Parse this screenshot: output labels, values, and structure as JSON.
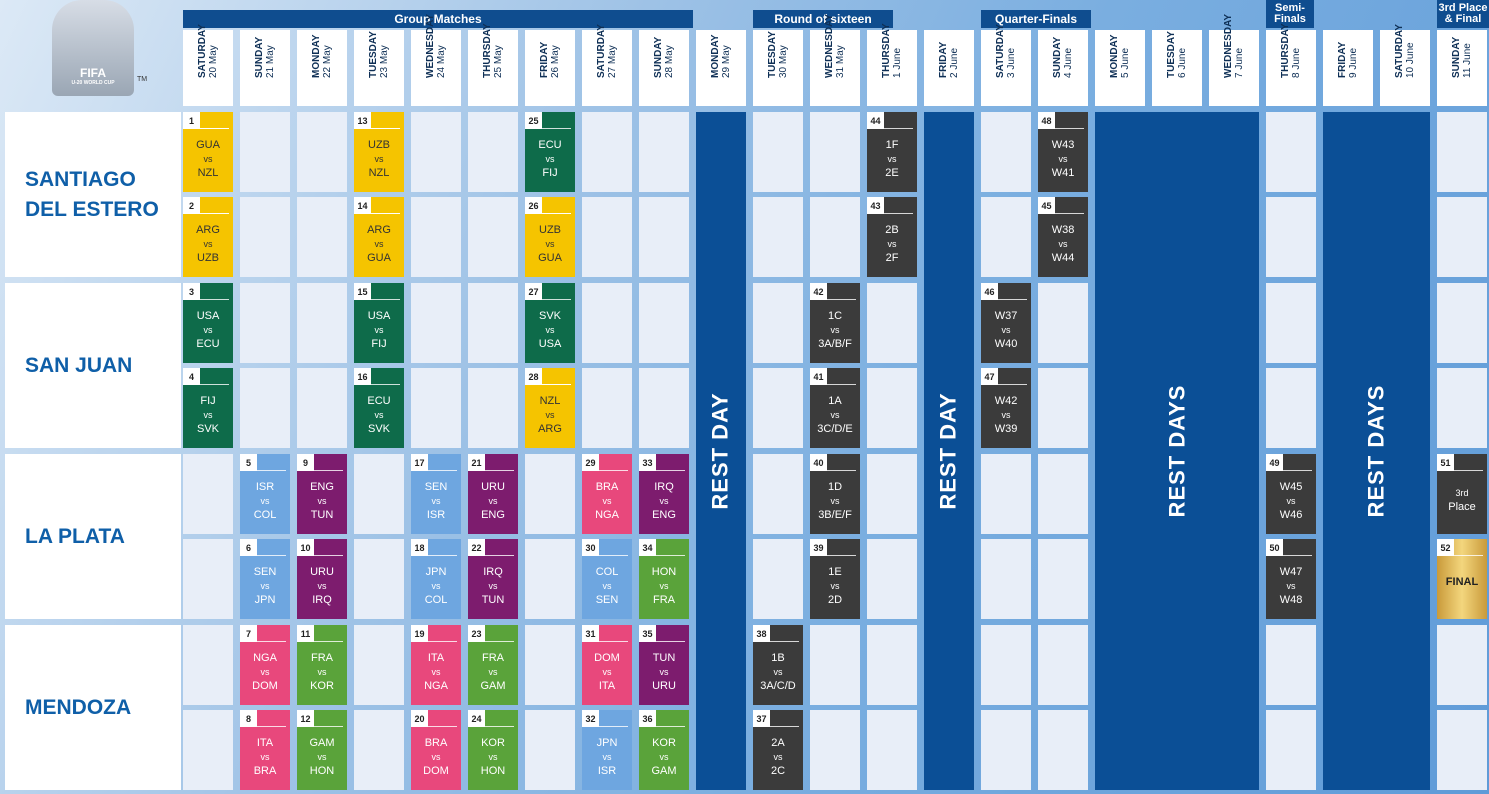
{
  "logo": {
    "brand": "FIFA",
    "sub": "U-20 WORLD CUP",
    "tm": "TM"
  },
  "phases": [
    {
      "label": "Group Matches"
    },
    {
      "label": "Round of sixteen"
    },
    {
      "label": "Quarter-Finals"
    },
    {
      "label": "Semi-\nFinals"
    },
    {
      "label": "3rd Place\n& Final"
    }
  ],
  "days": [
    {
      "name": "SATURDAY",
      "date": "20 May"
    },
    {
      "name": "SUNDAY",
      "date": "21 May"
    },
    {
      "name": "MONDAY",
      "date": "22 May"
    },
    {
      "name": "TUESDAY",
      "date": "23 May"
    },
    {
      "name": "WEDNESDAY",
      "date": "24 May"
    },
    {
      "name": "THURSDAY",
      "date": "25 May"
    },
    {
      "name": "FRIDAY",
      "date": "26 May"
    },
    {
      "name": "SATURDAY",
      "date": "27 May"
    },
    {
      "name": "SUNDAY",
      "date": "28 May"
    },
    {
      "name": "MONDAY",
      "date": "29 May"
    },
    {
      "name": "TUESDAY",
      "date": "30 May"
    },
    {
      "name": "WEDNESDAY",
      "date": "31 May"
    },
    {
      "name": "THURSDAY",
      "date": "1 June"
    },
    {
      "name": "FRIDAY",
      "date": "2 June"
    },
    {
      "name": "SATURDAY",
      "date": "3 June"
    },
    {
      "name": "SUNDAY",
      "date": "4 June"
    },
    {
      "name": "MONDAY",
      "date": "5 June"
    },
    {
      "name": "TUESDAY",
      "date": "6 June"
    },
    {
      "name": "WEDNESDAY",
      "date": "7 June"
    },
    {
      "name": "THURSDAY",
      "date": "8 June"
    },
    {
      "name": "FRIDAY",
      "date": "9 June"
    },
    {
      "name": "SATURDAY",
      "date": "10 June"
    },
    {
      "name": "SUNDAY",
      "date": "11 June"
    }
  ],
  "venues": [
    "SANTIAGO DEL ESTERO",
    "SAN JUAN",
    "LA PLATA",
    "MENDOZA"
  ],
  "rest_labels": {
    "single": "REST DAY",
    "multi": "REST DAYS"
  },
  "vs": "vs",
  "colors": {
    "yellow": "#f5c400",
    "green": "#0e6b4a",
    "lightblue": "#6ea6e0",
    "purple": "#7d1c6e",
    "pink": "#e8487c",
    "lime": "#5aa33a",
    "dark": "#3b3b3b",
    "gold": "#d9b25a",
    "navy": "#0f4d8f"
  },
  "matches": [
    {
      "n": "1",
      "a": "GUA",
      "b": "NZL",
      "color": "yellow",
      "row": 0,
      "col": 0
    },
    {
      "n": "13",
      "a": "UZB",
      "b": "NZL",
      "color": "yellow",
      "row": 0,
      "col": 3
    },
    {
      "n": "25",
      "a": "ECU",
      "b": "FIJ",
      "color": "green",
      "row": 0,
      "col": 6
    },
    {
      "n": "44",
      "a": "1F",
      "b": "2E",
      "color": "dark",
      "row": 0,
      "col": 12
    },
    {
      "n": "48",
      "a": "W43",
      "b": "W41",
      "color": "dark",
      "row": 0,
      "col": 15
    },
    {
      "n": "2",
      "a": "ARG",
      "b": "UZB",
      "color": "yellow",
      "row": 1,
      "col": 0
    },
    {
      "n": "14",
      "a": "ARG",
      "b": "GUA",
      "color": "yellow",
      "row": 1,
      "col": 3
    },
    {
      "n": "26",
      "a": "UZB",
      "b": "GUA",
      "color": "yellow",
      "row": 1,
      "col": 6
    },
    {
      "n": "43",
      "a": "2B",
      "b": "2F",
      "color": "dark",
      "row": 1,
      "col": 12
    },
    {
      "n": "45",
      "a": "W38",
      "b": "W44",
      "color": "dark",
      "row": 1,
      "col": 15
    },
    {
      "n": "3",
      "a": "USA",
      "b": "ECU",
      "color": "green",
      "row": 2,
      "col": 0
    },
    {
      "n": "15",
      "a": "USA",
      "b": "FIJ",
      "color": "green",
      "row": 2,
      "col": 3
    },
    {
      "n": "27",
      "a": "SVK",
      "b": "USA",
      "color": "green",
      "row": 2,
      "col": 6
    },
    {
      "n": "42",
      "a": "1C",
      "b": "3A/B/F",
      "color": "dark",
      "row": 2,
      "col": 11
    },
    {
      "n": "46",
      "a": "W37",
      "b": "W40",
      "color": "dark",
      "row": 2,
      "col": 14
    },
    {
      "n": "4",
      "a": "FIJ",
      "b": "SVK",
      "color": "green",
      "row": 3,
      "col": 0
    },
    {
      "n": "16",
      "a": "ECU",
      "b": "SVK",
      "color": "green",
      "row": 3,
      "col": 3
    },
    {
      "n": "28",
      "a": "NZL",
      "b": "ARG",
      "color": "yellow",
      "row": 3,
      "col": 6
    },
    {
      "n": "41",
      "a": "1A",
      "b": "3C/D/E",
      "color": "dark",
      "row": 3,
      "col": 11
    },
    {
      "n": "47",
      "a": "W42",
      "b": "W39",
      "color": "dark",
      "row": 3,
      "col": 14
    },
    {
      "n": "5",
      "a": "ISR",
      "b": "COL",
      "color": "lightblue",
      "row": 4,
      "col": 1
    },
    {
      "n": "9",
      "a": "ENG",
      "b": "TUN",
      "color": "purple",
      "row": 4,
      "col": 2
    },
    {
      "n": "17",
      "a": "SEN",
      "b": "ISR",
      "color": "lightblue",
      "row": 4,
      "col": 4
    },
    {
      "n": "21",
      "a": "URU",
      "b": "ENG",
      "color": "purple",
      "row": 4,
      "col": 5
    },
    {
      "n": "29",
      "a": "BRA",
      "b": "NGA",
      "color": "pink",
      "row": 4,
      "col": 7
    },
    {
      "n": "33",
      "a": "IRQ",
      "b": "ENG",
      "color": "purple",
      "row": 4,
      "col": 8
    },
    {
      "n": "40",
      "a": "1D",
      "b": "3B/E/F",
      "color": "dark",
      "row": 4,
      "col": 11
    },
    {
      "n": "49",
      "a": "W45",
      "b": "W46",
      "color": "dark",
      "row": 4,
      "col": 19
    },
    {
      "n": "51",
      "a": "3rd",
      "b": "Place",
      "color": "dark",
      "row": 4,
      "col": 22,
      "special": "third"
    },
    {
      "n": "6",
      "a": "SEN",
      "b": "JPN",
      "color": "lightblue",
      "row": 5,
      "col": 1
    },
    {
      "n": "10",
      "a": "URU",
      "b": "IRQ",
      "color": "purple",
      "row": 5,
      "col": 2
    },
    {
      "n": "18",
      "a": "JPN",
      "b": "COL",
      "color": "lightblue",
      "row": 5,
      "col": 4
    },
    {
      "n": "22",
      "a": "IRQ",
      "b": "TUN",
      "color": "purple",
      "row": 5,
      "col": 5
    },
    {
      "n": "30",
      "a": "COL",
      "b": "SEN",
      "color": "lightblue",
      "row": 5,
      "col": 7
    },
    {
      "n": "34",
      "a": "HON",
      "b": "FRA",
      "color": "lime",
      "row": 5,
      "col": 8
    },
    {
      "n": "39",
      "a": "1E",
      "b": "2D",
      "color": "dark",
      "row": 5,
      "col": 11
    },
    {
      "n": "50",
      "a": "W47",
      "b": "W48",
      "color": "dark",
      "row": 5,
      "col": 19
    },
    {
      "n": "52",
      "a": "FINAL",
      "b": "",
      "color": "gold",
      "row": 5,
      "col": 22,
      "special": "final"
    },
    {
      "n": "7",
      "a": "NGA",
      "b": "DOM",
      "color": "pink",
      "row": 6,
      "col": 1
    },
    {
      "n": "11",
      "a": "FRA",
      "b": "KOR",
      "color": "lime",
      "row": 6,
      "col": 2
    },
    {
      "n": "19",
      "a": "ITA",
      "b": "NGA",
      "color": "pink",
      "row": 6,
      "col": 4
    },
    {
      "n": "23",
      "a": "FRA",
      "b": "GAM",
      "color": "lime",
      "row": 6,
      "col": 5
    },
    {
      "n": "31",
      "a": "DOM",
      "b": "ITA",
      "color": "pink",
      "row": 6,
      "col": 7
    },
    {
      "n": "35",
      "a": "TUN",
      "b": "URU",
      "color": "purple",
      "row": 6,
      "col": 8
    },
    {
      "n": "38",
      "a": "1B",
      "b": "3A/C/D",
      "color": "dark",
      "row": 6,
      "col": 10
    },
    {
      "n": "8",
      "a": "ITA",
      "b": "BRA",
      "color": "pink",
      "row": 7,
      "col": 1
    },
    {
      "n": "12",
      "a": "GAM",
      "b": "HON",
      "color": "lime",
      "row": 7,
      "col": 2
    },
    {
      "n": "20",
      "a": "BRA",
      "b": "DOM",
      "color": "pink",
      "row": 7,
      "col": 4
    },
    {
      "n": "24",
      "a": "KOR",
      "b": "HON",
      "color": "lime",
      "row": 7,
      "col": 5
    },
    {
      "n": "32",
      "a": "JPN",
      "b": "ISR",
      "color": "lightblue",
      "row": 7,
      "col": 7
    },
    {
      "n": "36",
      "a": "KOR",
      "b": "GAM",
      "color": "lime",
      "row": 7,
      "col": 8
    },
    {
      "n": "37",
      "a": "2A",
      "b": "2C",
      "color": "dark",
      "row": 7,
      "col": 10
    }
  ]
}
